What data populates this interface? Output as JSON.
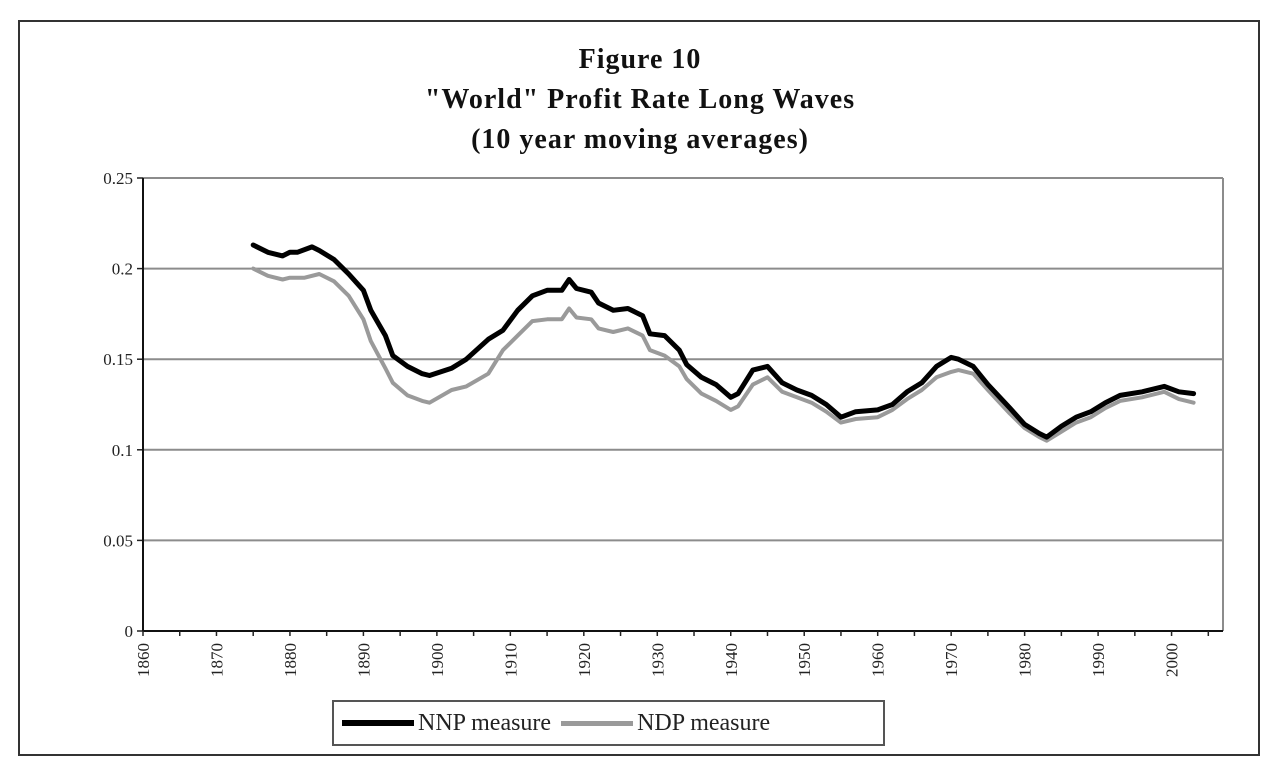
{
  "chart_data": {
    "type": "line",
    "title": "Figure 10",
    "subtitle_lines": [
      "\"World\" Profit Rate Long Waves",
      "(10 year moving averages)"
    ],
    "xlabel": "",
    "ylabel": "",
    "xlim": [
      1860,
      2007
    ],
    "ylim": [
      0,
      0.25
    ],
    "x_ticks": [
      1860,
      1870,
      1880,
      1890,
      1900,
      1910,
      1920,
      1930,
      1940,
      1950,
      1960,
      1970,
      1980,
      1990,
      2000
    ],
    "y_ticks": [
      0,
      0.05,
      0.1,
      0.15,
      0.2,
      0.25
    ],
    "y_tick_labels": [
      "0",
      "0.05",
      "0.1",
      "0.15",
      "0.2",
      "0.25"
    ],
    "grid": "horizontal",
    "legend_placement": "bottom",
    "series": [
      {
        "name": "NNP measure",
        "color": "#000000",
        "x": [
          1875,
          1877,
          1879,
          1880,
          1881,
          1883,
          1884,
          1886,
          1888,
          1890,
          1891,
          1893,
          1894,
          1896,
          1898,
          1899,
          1902,
          1904,
          1907,
          1909,
          1911,
          1913,
          1915,
          1917,
          1918,
          1919,
          1921,
          1922,
          1924,
          1926,
          1928,
          1929,
          1931,
          1933,
          1934,
          1936,
          1938,
          1940,
          1941,
          1943,
          1945,
          1947,
          1949,
          1951,
          1953,
          1955,
          1957,
          1960,
          1962,
          1964,
          1966,
          1968,
          1970,
          1971,
          1973,
          1975,
          1978,
          1980,
          1982,
          1983,
          1985,
          1987,
          1989,
          1991,
          1993,
          1996,
          1999,
          2001,
          2003
        ],
        "y": [
          0.213,
          0.209,
          0.207,
          0.209,
          0.209,
          0.212,
          0.21,
          0.205,
          0.197,
          0.188,
          0.177,
          0.163,
          0.152,
          0.146,
          0.142,
          0.141,
          0.145,
          0.15,
          0.161,
          0.166,
          0.177,
          0.185,
          0.188,
          0.188,
          0.194,
          0.189,
          0.187,
          0.181,
          0.177,
          0.178,
          0.174,
          0.164,
          0.163,
          0.155,
          0.147,
          0.14,
          0.136,
          0.129,
          0.131,
          0.144,
          0.146,
          0.137,
          0.133,
          0.13,
          0.125,
          0.118,
          0.121,
          0.122,
          0.125,
          0.132,
          0.137,
          0.146,
          0.151,
          0.15,
          0.146,
          0.136,
          0.123,
          0.114,
          0.109,
          0.107,
          0.113,
          0.118,
          0.121,
          0.126,
          0.13,
          0.132,
          0.135,
          0.132,
          0.131
        ]
      },
      {
        "name": "NDP measure",
        "color": "#9a9a9a",
        "x": [
          1875,
          1877,
          1879,
          1880,
          1882,
          1884,
          1886,
          1888,
          1890,
          1891,
          1893,
          1894,
          1896,
          1898,
          1899,
          1902,
          1904,
          1907,
          1909,
          1911,
          1913,
          1915,
          1917,
          1918,
          1919,
          1921,
          1922,
          1924,
          1926,
          1928,
          1929,
          1931,
          1933,
          1934,
          1936,
          1938,
          1940,
          1941,
          1943,
          1945,
          1947,
          1949,
          1951,
          1953,
          1955,
          1957,
          1960,
          1962,
          1964,
          1966,
          1968,
          1970,
          1971,
          1973,
          1975,
          1978,
          1980,
          1982,
          1983,
          1985,
          1987,
          1989,
          1991,
          1993,
          1996,
          1999,
          2001,
          2003
        ],
        "y": [
          0.2,
          0.196,
          0.194,
          0.195,
          0.195,
          0.197,
          0.193,
          0.185,
          0.172,
          0.16,
          0.145,
          0.137,
          0.13,
          0.127,
          0.126,
          0.133,
          0.135,
          0.142,
          0.155,
          0.163,
          0.171,
          0.172,
          0.172,
          0.178,
          0.173,
          0.172,
          0.167,
          0.165,
          0.167,
          0.163,
          0.155,
          0.152,
          0.146,
          0.139,
          0.131,
          0.127,
          0.122,
          0.124,
          0.136,
          0.14,
          0.132,
          0.129,
          0.126,
          0.121,
          0.115,
          0.117,
          0.118,
          0.122,
          0.128,
          0.133,
          0.14,
          0.143,
          0.144,
          0.142,
          0.133,
          0.12,
          0.112,
          0.107,
          0.105,
          0.11,
          0.115,
          0.118,
          0.123,
          0.127,
          0.129,
          0.132,
          0.128,
          0.126
        ]
      }
    ]
  }
}
